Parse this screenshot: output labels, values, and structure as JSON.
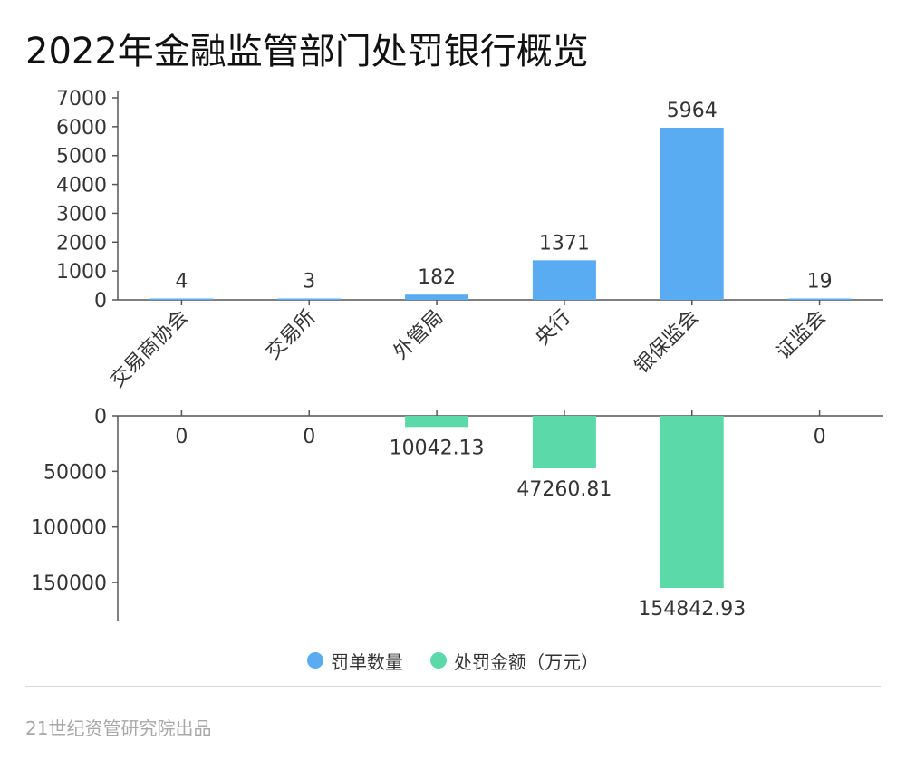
{
  "title": "2022年金融监管部门处罚银行概览",
  "source": "21世纪资管研究院出品",
  "colors": {
    "count": "#5aacf2",
    "amount": "#5cd9a8",
    "axis": "#555555",
    "text": "#333333"
  },
  "legend": {
    "count_label": "罚单数量",
    "amount_label": "处罚金额（万元）"
  },
  "chart_data": {
    "type": "bar",
    "categories": [
      "交易商协会",
      "交易所",
      "外管局",
      "央行",
      "银保监会",
      "证监会"
    ],
    "series": [
      {
        "name": "罚单数量",
        "values": [
          4,
          3,
          182,
          1371,
          5964,
          19
        ],
        "labels": [
          "4",
          "3",
          "182",
          "1371",
          "5964",
          "19"
        ]
      },
      {
        "name": "处罚金额（万元）",
        "values": [
          0,
          0,
          10042.13,
          47260.81,
          154842.93,
          0
        ],
        "labels": [
          "0",
          "0",
          "10042.13",
          "47260.81",
          "154842.93",
          "0"
        ]
      }
    ],
    "top_axis": {
      "ylim": [
        0,
        7000
      ],
      "ticks": [
        0,
        1000,
        2000,
        3000,
        4000,
        5000,
        6000,
        7000
      ]
    },
    "bottom_axis": {
      "ylim": [
        0,
        185000
      ],
      "ticks": [
        0,
        50000,
        100000,
        150000
      ],
      "inverted": true
    },
    "legend_position": "bottom-center"
  }
}
